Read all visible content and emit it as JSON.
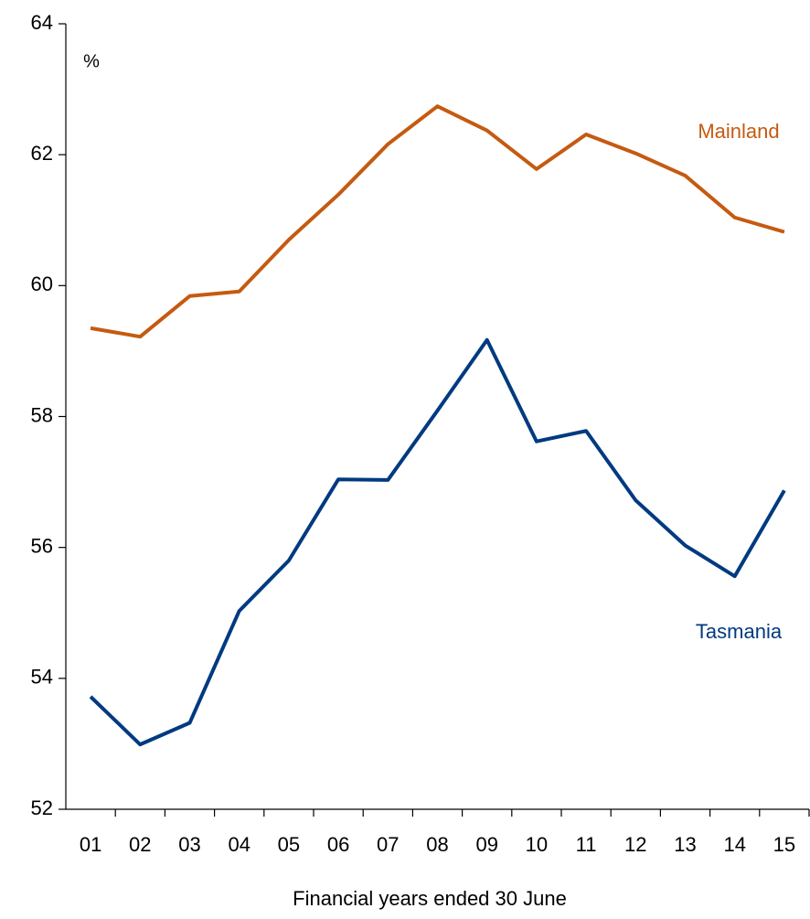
{
  "chart_data": {
    "type": "line",
    "unit_label": "%",
    "x_label": "Financial years ended 30 June",
    "categories": [
      "01",
      "02",
      "03",
      "04",
      "05",
      "06",
      "07",
      "08",
      "09",
      "10",
      "11",
      "12",
      "13",
      "14",
      "15"
    ],
    "series": [
      {
        "name": "Mainland",
        "color": "#c55a11",
        "values": [
          59.35,
          59.22,
          59.84,
          59.91,
          60.7,
          61.39,
          62.16,
          62.74,
          62.37,
          61.78,
          62.31,
          62.02,
          61.68,
          61.04,
          60.82
        ]
      },
      {
        "name": "Tasmania",
        "color": "#003a80",
        "values": [
          53.72,
          52.99,
          53.32,
          55.03,
          55.8,
          57.04,
          57.03,
          58.09,
          59.17,
          57.62,
          57.78,
          56.72,
          56.03,
          55.56,
          56.87
        ]
      }
    ],
    "ylim": [
      52,
      64
    ],
    "yticks": [
      52,
      54,
      56,
      58,
      60,
      62,
      64
    ]
  }
}
